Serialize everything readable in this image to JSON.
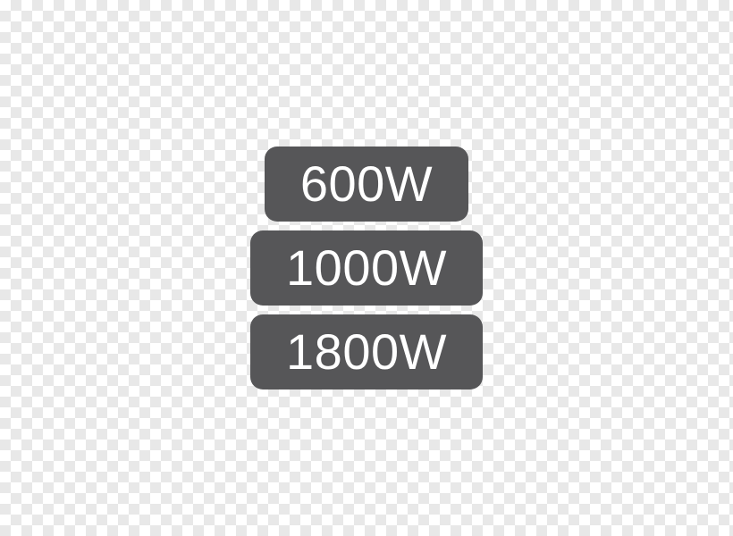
{
  "wattage_options": {
    "items": [
      {
        "label": "600W"
      },
      {
        "label": "1000W"
      },
      {
        "label": "1800W"
      }
    ],
    "badge_background_color": "#565658",
    "badge_text_color": "#ffffff",
    "badge_border_radius": 14,
    "badge_font_size": 56,
    "badge_font_weight": 300,
    "gap": 10,
    "checkerboard_light": "#ffffff",
    "checkerboard_dark": "#e8e8e8"
  }
}
